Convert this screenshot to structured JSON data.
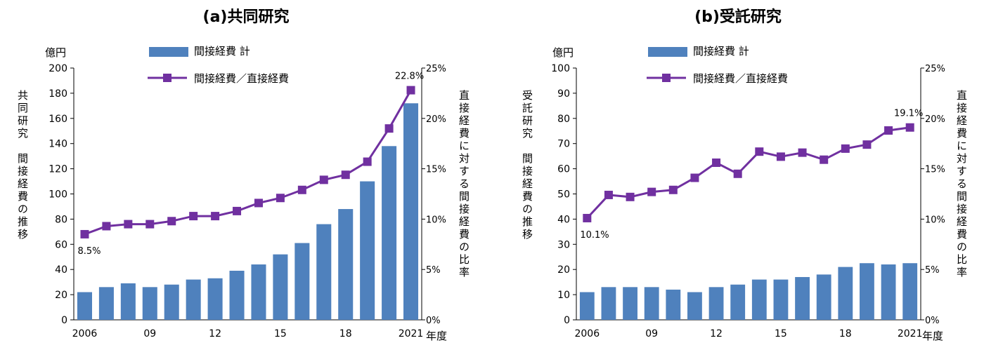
{
  "colors": {
    "bar": "#4f81bd",
    "line": "#7030a0",
    "axis": "#000000"
  },
  "legend": {
    "bar_label": "間接経費  計",
    "line_label": "間接経費／直接経費"
  },
  "x_unit": "年度",
  "chart_data": [
    {
      "type": "bar",
      "title": "(a)共同研究",
      "ylabel": "共同研究　間接経費の推移",
      "y_unit": "億円",
      "y2label": "直接経費に対する間接経費の比率",
      "ylim": [
        0,
        200
      ],
      "yticks": [
        "0",
        "20",
        "40",
        "60",
        "80",
        "100",
        "120",
        "140",
        "160",
        "180",
        "200"
      ],
      "y2lim": [
        0,
        25
      ],
      "y2ticks": [
        "0%",
        "5%",
        "10%",
        "15%",
        "20%",
        "25%"
      ],
      "categories": [
        "2006",
        "2007",
        "2008",
        "2009",
        "2010",
        "2011",
        "2012",
        "2013",
        "2014",
        "2015",
        "2016",
        "2017",
        "2018",
        "2019",
        "2020",
        "2021"
      ],
      "x_tick_labels": [
        "2006",
        "09",
        "12",
        "15",
        "18",
        "2021"
      ],
      "series": [
        {
          "name": "間接経費  計",
          "axis": "left",
          "type": "bar",
          "values": [
            22,
            26,
            29,
            26,
            28,
            32,
            33,
            39,
            44,
            52,
            61,
            76,
            88,
            110,
            138,
            172
          ]
        },
        {
          "name": "間接経費／直接経費",
          "axis": "right",
          "type": "line",
          "values": [
            8.5,
            9.3,
            9.5,
            9.5,
            9.8,
            10.3,
            10.3,
            10.8,
            11.6,
            12.1,
            12.9,
            13.9,
            14.4,
            15.7,
            19.0,
            22.8
          ]
        }
      ],
      "annotations": [
        {
          "text": "8.5%",
          "series": 1,
          "index": 0
        },
        {
          "text": "22.8%",
          "series": 1,
          "index": 15
        }
      ]
    },
    {
      "type": "bar",
      "title": "(b)受託研究",
      "ylabel": "受託研究　間接経費の推移",
      "y_unit": "億円",
      "y2label": "直接経費に対する間接経費の比率",
      "ylim": [
        0,
        100
      ],
      "yticks": [
        "0",
        "10",
        "20",
        "30",
        "40",
        "50",
        "60",
        "70",
        "80",
        "90",
        "100"
      ],
      "y2lim": [
        0,
        25
      ],
      "y2ticks": [
        "0%",
        "5%",
        "10%",
        "15%",
        "20%",
        "25%"
      ],
      "categories": [
        "2006",
        "2007",
        "2008",
        "2009",
        "2010",
        "2011",
        "2012",
        "2013",
        "2014",
        "2015",
        "2016",
        "2017",
        "2018",
        "2019",
        "2020",
        "2021"
      ],
      "x_tick_labels": [
        "2006",
        "09",
        "12",
        "15",
        "18",
        "2021"
      ],
      "series": [
        {
          "name": "間接経費  計",
          "axis": "left",
          "type": "bar",
          "values": [
            11,
            13,
            13,
            13,
            12,
            11,
            13,
            14,
            16,
            16,
            17,
            18,
            21,
            22.5,
            22,
            22.5
          ]
        },
        {
          "name": "間接経費／直接経費",
          "axis": "right",
          "type": "line",
          "values": [
            10.1,
            12.4,
            12.2,
            12.7,
            12.9,
            14.1,
            15.6,
            14.5,
            16.7,
            16.2,
            16.6,
            15.9,
            17.0,
            17.4,
            18.8,
            19.1
          ]
        }
      ],
      "annotations": [
        {
          "text": "10.1%",
          "series": 1,
          "index": 0
        },
        {
          "text": "19.1%",
          "series": 1,
          "index": 15
        }
      ]
    }
  ]
}
